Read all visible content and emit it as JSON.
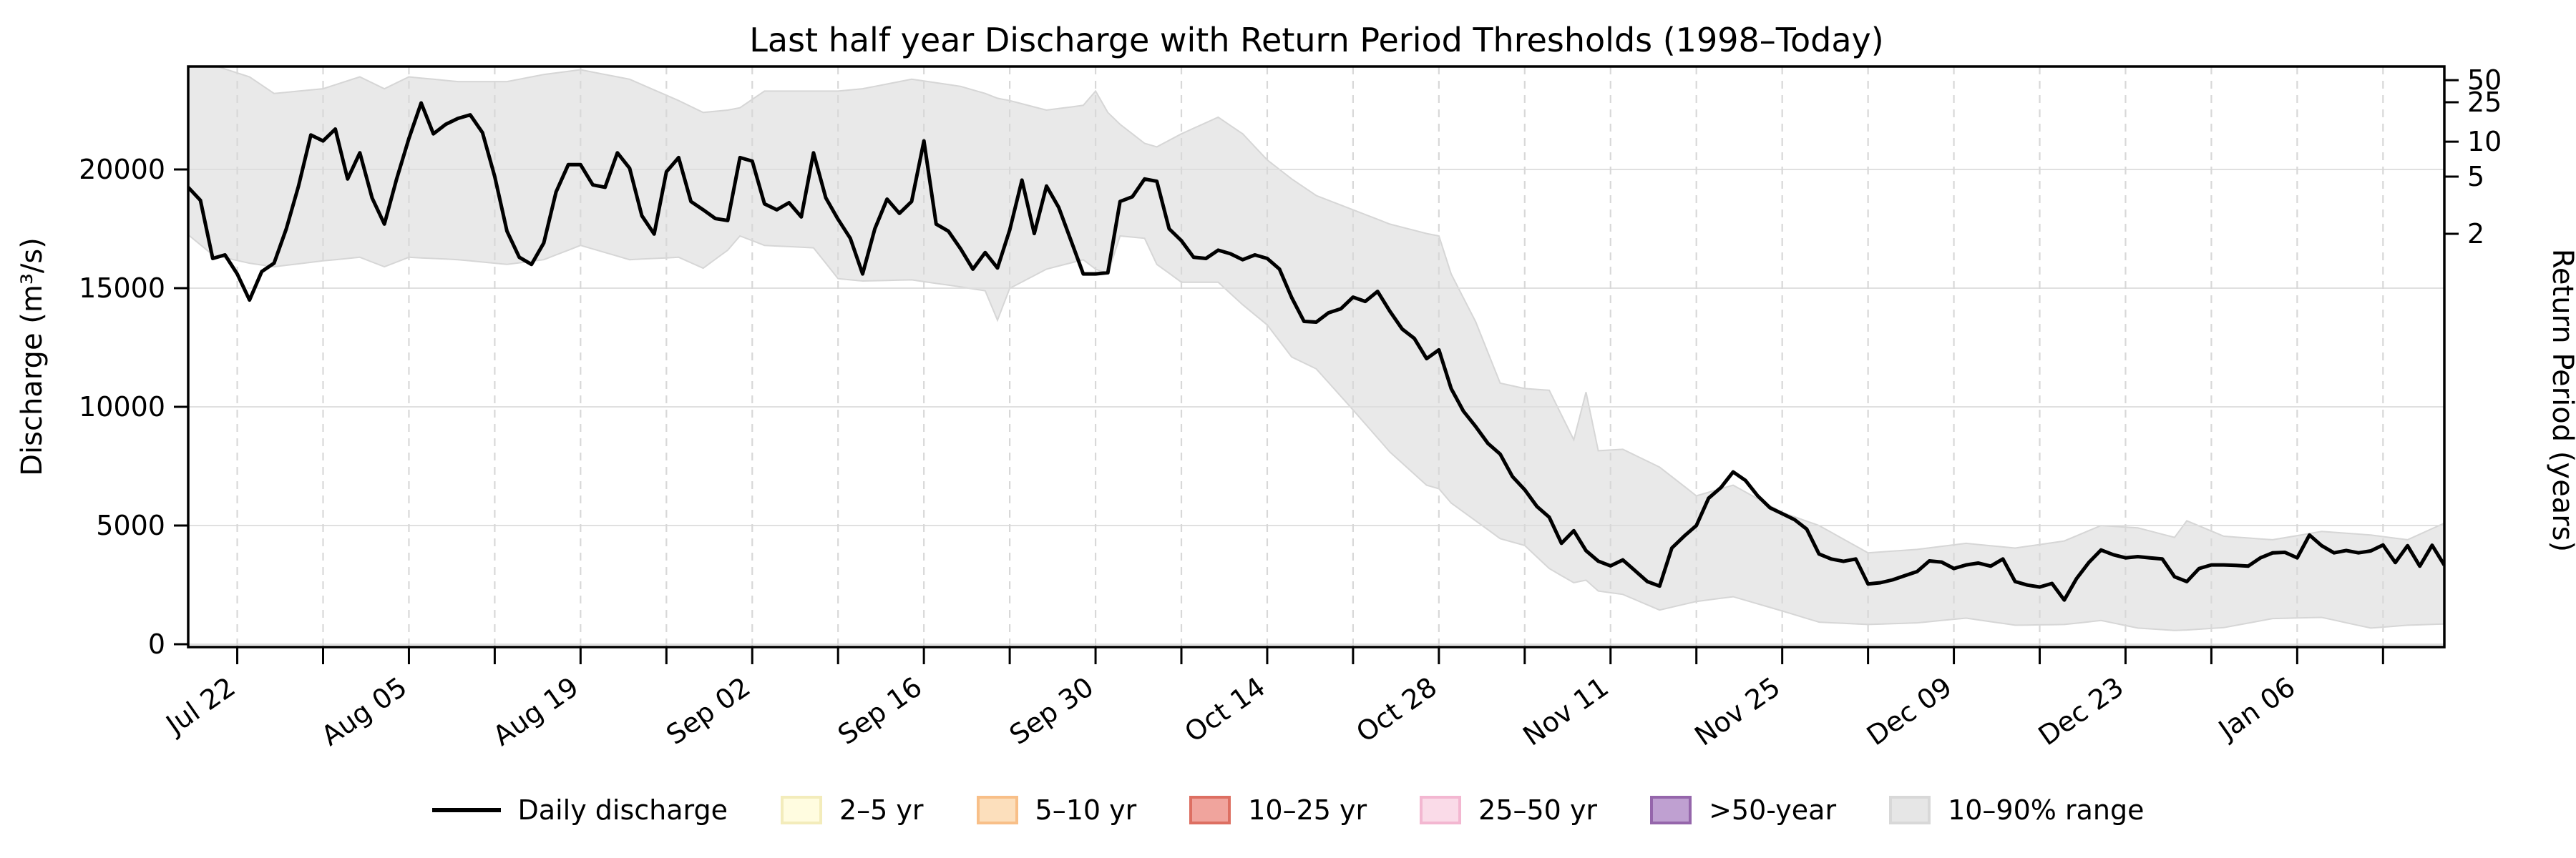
{
  "figure": {
    "background": "#ffffff"
  },
  "chart_data": {
    "type": "line",
    "title": "Last half year Discharge with Return Period Thresholds (1998–Today)",
    "x_axis": {
      "start_date": "Jul 18",
      "end_date": "Jan 18",
      "labeled_ticks": [
        {
          "index": 4,
          "label": "Jul 22"
        },
        {
          "index": 18,
          "label": "Aug 05"
        },
        {
          "index": 32,
          "label": "Aug 19"
        },
        {
          "index": 46,
          "label": "Sep 02"
        },
        {
          "index": 60,
          "label": "Sep 16"
        },
        {
          "index": 74,
          "label": "Sep 30"
        },
        {
          "index": 88,
          "label": "Oct 14"
        },
        {
          "index": 102,
          "label": "Oct 28"
        },
        {
          "index": 116,
          "label": "Nov 11"
        },
        {
          "index": 130,
          "label": "Nov 25"
        },
        {
          "index": 144,
          "label": "Dec 09"
        },
        {
          "index": 158,
          "label": "Dec 23"
        },
        {
          "index": 172,
          "label": "Jan 06"
        }
      ],
      "minor_tick_indices": [
        4,
        11,
        18,
        25,
        32,
        39,
        46,
        53,
        60,
        67,
        74,
        81,
        88,
        95,
        102,
        109,
        116,
        123,
        130,
        137,
        144,
        151,
        158,
        165,
        172,
        179
      ],
      "label_rotation_deg": 35
    },
    "y_axis": {
      "label": "Discharge (m³/s)",
      "ticks": [
        0,
        5000,
        10000,
        15000,
        20000
      ],
      "lim": [
        -120,
        24340
      ]
    },
    "y2_axis": {
      "label": "Return Period (years)",
      "ticks": [
        {
          "label": "50",
          "discharge": 23760
        },
        {
          "label": "25",
          "discharge": 22830
        },
        {
          "label": "10",
          "discharge": 21170
        },
        {
          "label": "5",
          "discharge": 19700
        },
        {
          "label": "2",
          "discharge": 17290
        }
      ]
    },
    "grid": {
      "horizontal": "solid",
      "vertical": "dashed"
    },
    "series": [
      {
        "name": "Daily discharge",
        "color": "#000000",
        "line_width": 5,
        "values": [
          19250,
          18700,
          16250,
          16400,
          15600,
          14500,
          15700,
          16050,
          17500,
          19300,
          21450,
          21200,
          21700,
          19600,
          20700,
          18800,
          17700,
          19600,
          21300,
          22800,
          21500,
          21900,
          22150,
          22300,
          21550,
          19700,
          17400,
          16300,
          16000,
          16900,
          19050,
          20200,
          20200,
          19350,
          19250,
          20700,
          20050,
          18050,
          17280,
          19900,
          20500,
          18650,
          18300,
          17930,
          17850,
          20500,
          20350,
          18550,
          18300,
          18600,
          18000,
          20700,
          18800,
          17900,
          17100,
          15600,
          17500,
          18750,
          18150,
          18650,
          21200,
          17700,
          17400,
          16650,
          15800,
          16500,
          15850,
          17450,
          19550,
          17300,
          19300,
          18400,
          17000,
          15600,
          15600,
          15650,
          18650,
          18850,
          19600,
          19500,
          17500,
          17000,
          16300,
          16250,
          16600,
          16450,
          16200,
          16400,
          16250,
          15800,
          14600,
          13600,
          13570,
          13960,
          14130,
          14620,
          14440,
          14860,
          14030,
          13280,
          12880,
          12030,
          12400,
          10770,
          9820,
          9170,
          8460,
          8010,
          7060,
          6510,
          5800,
          5350,
          4250,
          4780,
          3940,
          3500,
          3300,
          3550,
          3100,
          2640,
          2450,
          4050,
          4550,
          5000,
          6150,
          6600,
          7260,
          6900,
          6250,
          5750,
          5500,
          5250,
          4850,
          3800,
          3590,
          3490,
          3590,
          2540,
          2590,
          2710,
          2890,
          3060,
          3510,
          3460,
          3190,
          3340,
          3420,
          3290,
          3590,
          2640,
          2490,
          2410,
          2560,
          1860,
          2760,
          3440,
          3970,
          3770,
          3640,
          3690,
          3640,
          3590,
          2840,
          2640,
          3190,
          3340,
          3340,
          3320,
          3290,
          3640,
          3850,
          3870,
          3640,
          4600,
          4150,
          3850,
          3950,
          3850,
          3930,
          4180,
          3440,
          4150,
          3290,
          4170,
          3330
        ]
      }
    ],
    "band": {
      "name": "10–90% range",
      "fill": "#e9e9e9",
      "edge": "#d6d6d6",
      "points_format": [
        "day_index",
        "lower",
        "upper"
      ],
      "points": [
        [
          0,
          17250,
          24300
        ],
        [
          2,
          16400,
          24400
        ],
        [
          5,
          16050,
          23900
        ],
        [
          7,
          15900,
          23200
        ],
        [
          11,
          16150,
          23400
        ],
        [
          14,
          16300,
          23900
        ],
        [
          16,
          15900,
          23400
        ],
        [
          18,
          16300,
          23900
        ],
        [
          22,
          16200,
          23700
        ],
        [
          26,
          16000,
          23700
        ],
        [
          29,
          16200,
          24000
        ],
        [
          32,
          16800,
          24200
        ],
        [
          36,
          16200,
          23800
        ],
        [
          40,
          16300,
          22900
        ],
        [
          42,
          15840,
          22400
        ],
        [
          44,
          16600,
          22500
        ],
        [
          45,
          17200,
          22600
        ],
        [
          47,
          16800,
          23300
        ],
        [
          51,
          16700,
          23300
        ],
        [
          53,
          15400,
          23300
        ],
        [
          55,
          15300,
          23400
        ],
        [
          59,
          15350,
          23800
        ],
        [
          63,
          15050,
          23500
        ],
        [
          65,
          14890,
          23200
        ],
        [
          66,
          13650,
          23000
        ],
        [
          67,
          14990,
          22900
        ],
        [
          70,
          15800,
          22500
        ],
        [
          73,
          16200,
          22700
        ],
        [
          74,
          15800,
          23300
        ],
        [
          75,
          15600,
          22400
        ],
        [
          76,
          17200,
          21900
        ],
        [
          78,
          17100,
          21100
        ],
        [
          79,
          16000,
          20950
        ],
        [
          81,
          15250,
          21500
        ],
        [
          84,
          15250,
          22200
        ],
        [
          86,
          14300,
          21500
        ],
        [
          88,
          13450,
          20400
        ],
        [
          90,
          12100,
          19600
        ],
        [
          92,
          11600,
          18900
        ],
        [
          95,
          9870,
          18300
        ],
        [
          98,
          8100,
          17700
        ],
        [
          101,
          6700,
          17300
        ],
        [
          102,
          6550,
          17200
        ],
        [
          103,
          5950,
          15600
        ],
        [
          105,
          5200,
          13580
        ],
        [
          107,
          4450,
          11000
        ],
        [
          109,
          4160,
          10770
        ],
        [
          111,
          3190,
          10700
        ],
        [
          113,
          2590,
          8610
        ],
        [
          114,
          2700,
          10620
        ],
        [
          115,
          2240,
          8150
        ],
        [
          117,
          2100,
          8210
        ],
        [
          120,
          1440,
          7460
        ],
        [
          123,
          1800,
          6250
        ],
        [
          126,
          2000,
          6700
        ],
        [
          130,
          1400,
          5550
        ],
        [
          133,
          930,
          5000
        ],
        [
          137,
          830,
          3850
        ],
        [
          141,
          900,
          3995
        ],
        [
          145,
          1100,
          4250
        ],
        [
          149,
          800,
          4050
        ],
        [
          153,
          830,
          4350
        ],
        [
          156,
          1000,
          5000
        ],
        [
          159,
          680,
          4900
        ],
        [
          162,
          580,
          4500
        ],
        [
          163,
          600,
          5200
        ],
        [
          166,
          700,
          4550
        ],
        [
          170,
          1080,
          4400
        ],
        [
          174,
          1130,
          4750
        ],
        [
          178,
          680,
          4600
        ],
        [
          181,
          800,
          4400
        ],
        [
          184,
          850,
          5100
        ]
      ]
    }
  },
  "legend": {
    "items": [
      {
        "name": "Daily discharge",
        "type": "line",
        "color": "#000000"
      },
      {
        "name": "2–5 yr",
        "type": "patch",
        "fill": "#fffce0",
        "edge": "#f3ecbb"
      },
      {
        "name": "5–10 yr",
        "type": "patch",
        "fill": "#fcdfbc",
        "edge": "#f8bf88"
      },
      {
        "name": "10–25 yr",
        "type": "patch",
        "fill": "#f0a49d",
        "edge": "#dd6f62"
      },
      {
        "name": "25–50 yr",
        "type": "patch",
        "fill": "#fadbe8",
        "edge": "#f3b7d1"
      },
      {
        "name": ">50-year",
        "type": "patch",
        "fill": "#bfa0d1",
        "edge": "#9566ab"
      },
      {
        "name": "10–90% range",
        "type": "patch",
        "fill": "#e6e6e6",
        "edge": "#d8d8d8"
      }
    ]
  }
}
